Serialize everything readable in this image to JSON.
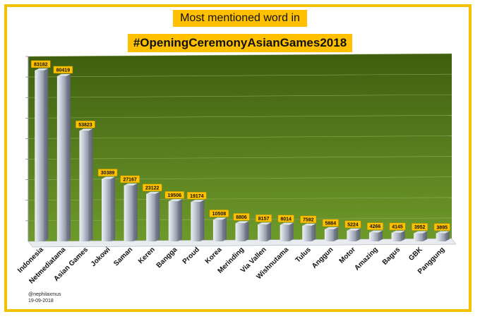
{
  "header": {
    "line1": "Most mentioned word in",
    "line2": "#OpeningCeremonyAsianGames2018"
  },
  "credit": {
    "handle": "@nephilaxmus",
    "date": "19-09-2018"
  },
  "colors": {
    "frame": "#f2c200",
    "label_box": "#ffc000",
    "plot_bg_top": "#3f5f0f",
    "plot_bg_bottom": "#6e9a2b",
    "bar": "#c4cad6"
  },
  "chart_data": {
    "type": "bar",
    "title": "Most mentioned word in #OpeningCeremonyAsianGames2018",
    "categories": [
      "Indonesia",
      "Netmediatama",
      "Asian Games",
      "Jokowi",
      "Saman",
      "Keren",
      "Bangga",
      "Proud",
      "Korea",
      "Merinding",
      "Via Vallen",
      "Wishnutama",
      "Tulus",
      "Anggun",
      "Motor",
      "Amazing",
      "Bagus",
      "GBK",
      "Panggung"
    ],
    "values": [
      83182,
      80419,
      53823,
      30389,
      27167,
      23122,
      19506,
      19174,
      10508,
      8806,
      8157,
      8014,
      7592,
      5884,
      5224,
      4266,
      4145,
      3952,
      3895
    ],
    "ylim": [
      0,
      90000
    ],
    "grid": true,
    "data_labels": true
  }
}
